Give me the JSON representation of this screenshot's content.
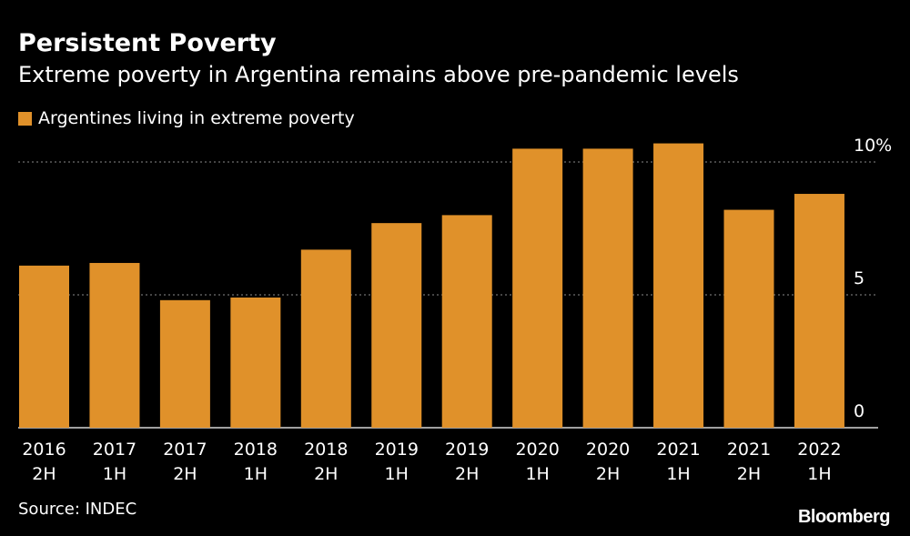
{
  "title": "Persistent Poverty",
  "subtitle": "Extreme poverty in Argentina remains above pre-pandemic levels",
  "source": "Source: INDEC",
  "brand": "Bloomberg",
  "colors": {
    "background": "#000000",
    "bar": "#e0912a",
    "text": "#ffffff",
    "grid": "#8a8a8a"
  },
  "chart_data": {
    "type": "bar",
    "title": "Persistent Poverty",
    "subtitle": "Extreme poverty in Argentina remains above pre-pandemic levels",
    "xlabel": "",
    "ylabel": "",
    "legend": "top-left",
    "grid": true,
    "ylim": [
      0,
      10
    ],
    "yticks": [
      {
        "value": 0,
        "label": "0"
      },
      {
        "value": 5,
        "label": "5"
      },
      {
        "value": 10,
        "label": "10%"
      }
    ],
    "categories": [
      {
        "line1": "2016",
        "line2": "2H"
      },
      {
        "line1": "2017",
        "line2": "1H"
      },
      {
        "line1": "2017",
        "line2": "2H"
      },
      {
        "line1": "2018",
        "line2": "1H"
      },
      {
        "line1": "2018",
        "line2": "2H"
      },
      {
        "line1": "2019",
        "line2": "1H"
      },
      {
        "line1": "2019",
        "line2": "2H"
      },
      {
        "line1": "2020",
        "line2": "1H"
      },
      {
        "line1": "2020",
        "line2": "2H"
      },
      {
        "line1": "2021",
        "line2": "1H"
      },
      {
        "line1": "2021",
        "line2": "2H"
      },
      {
        "line1": "2022",
        "line2": "1H"
      }
    ],
    "series": [
      {
        "name": "Argentines living in extreme poverty",
        "values": [
          6.1,
          6.2,
          4.8,
          4.9,
          6.7,
          7.7,
          8.0,
          10.5,
          10.5,
          10.7,
          8.2,
          8.8
        ]
      }
    ]
  }
}
